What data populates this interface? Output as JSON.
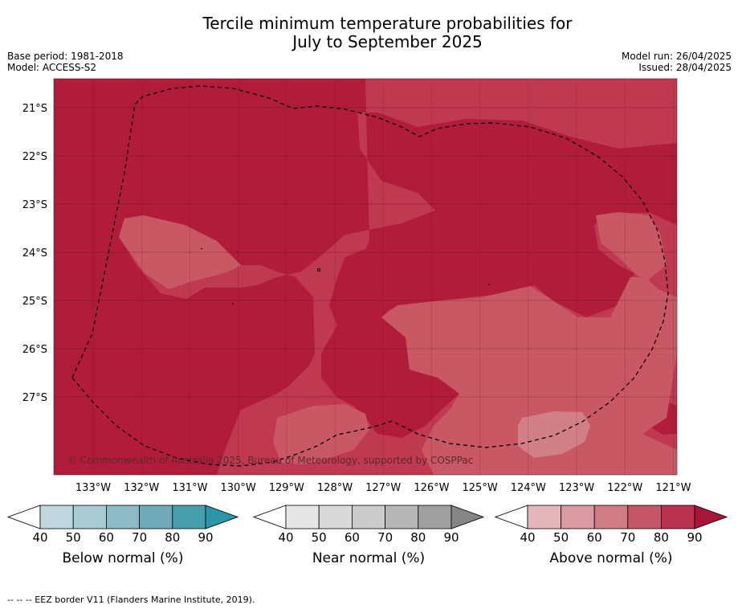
{
  "title_line1": "Tercile minimum temperature probabilities for",
  "title_line2": "July to September 2025",
  "base_period": "Base period: 1981-2018",
  "model": "Model: ACCESS-S2",
  "model_run": "Model run: 26/04/2025",
  "issued": "Issued: 28/04/2025",
  "copyright": "© Commonwealth of Australia 2025, Bureau of Meteorology, supported by COSPPac",
  "footnote": "--  --  -- EEZ border V11 (Flanders Marine Institute, 2019).",
  "map": {
    "lat_labels": [
      "21°S",
      "22°S",
      "23°S",
      "24°S",
      "25°S",
      "26°S",
      "27°S"
    ],
    "lon_labels": [
      "133°W",
      "132°W",
      "131°W",
      "130°W",
      "129°W",
      "128°W",
      "127°W",
      "126°W",
      "125°W",
      "124°W",
      "123°W",
      "122°W",
      "121°W"
    ],
    "colors": {
      "above_80_90": "#b01c3a",
      "above_70_80": "#bf3950",
      "above_60_70": "#c95865",
      "above_50_60": "#d28087"
    }
  },
  "legends": [
    {
      "name": "below-normal",
      "label": "Below normal (%)",
      "ticks": [
        "40",
        "50",
        "60",
        "70",
        "80",
        "90"
      ],
      "colors": [
        "#ffffff",
        "#bdd7dd",
        "#a8cbd2",
        "#8dbac4",
        "#6fabb8",
        "#479fae",
        "#2b96a5"
      ]
    },
    {
      "name": "near-normal",
      "label": "Near normal (%)",
      "ticks": [
        "40",
        "50",
        "60",
        "70",
        "80",
        "90"
      ],
      "colors": [
        "#ffffff",
        "#e6e6e6",
        "#d9d9d9",
        "#cbcbcb",
        "#b7b7b7",
        "#a0a0a0",
        "#858585"
      ]
    },
    {
      "name": "above-normal",
      "label": "Above normal (%)",
      "ticks": [
        "40",
        "50",
        "60",
        "70",
        "80",
        "90"
      ],
      "colors": [
        "#ffffff",
        "#e3b6bc",
        "#d99aa2",
        "#cf7c85",
        "#c4566a",
        "#bb3350",
        "#a81637"
      ]
    }
  ]
}
